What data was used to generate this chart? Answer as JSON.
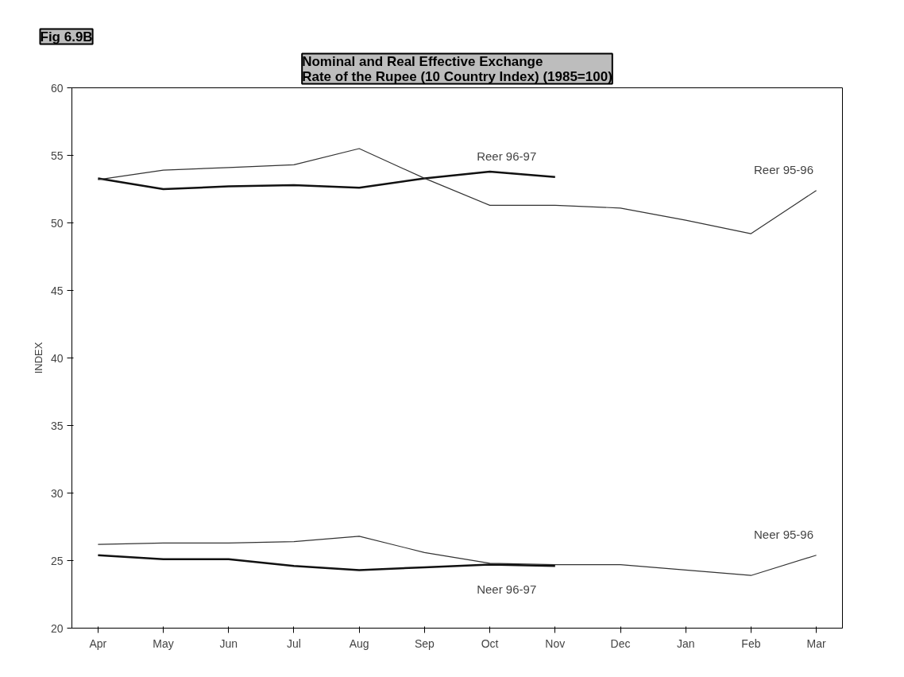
{
  "chart_data": {
    "type": "line",
    "title": "Nominal and Real Effective Exchange\nRate of the Rupee (10 Country Index) (1985=100)",
    "ylabel": "INDEX",
    "annotations": [
      "Fig 6.9B"
    ],
    "categories": [
      "Apr",
      "May",
      "Jun",
      "Jul",
      "Aug",
      "Sep",
      "Oct",
      "Nov",
      "Dec",
      "Jan",
      "Feb",
      "Mar"
    ],
    "series": [
      {
        "name": "Reer 96-97",
        "color": "#111111",
        "values": [
          53.3,
          52.5,
          52.7,
          52.8,
          52.6,
          53.3,
          53.8,
          53.4,
          null,
          null,
          null,
          null
        ]
      },
      {
        "name": "Reer 95-96",
        "color": "#333333",
        "values": [
          53.2,
          53.9,
          54.1,
          54.3,
          55.5,
          53.3,
          51.3,
          51.3,
          51.1,
          50.2,
          49.2,
          52.4
        ]
      },
      {
        "name": "Neer 95-96",
        "color": "#333333",
        "values": [
          26.2,
          26.3,
          26.3,
          26.4,
          26.8,
          25.6,
          24.8,
          24.7,
          24.7,
          24.3,
          23.9,
          25.4
        ]
      },
      {
        "name": "Neer 96-97",
        "color": "#111111",
        "values": [
          25.4,
          25.1,
          25.1,
          24.6,
          24.3,
          24.5,
          24.7,
          24.6,
          null,
          null,
          null,
          null
        ]
      }
    ],
    "ylim": [
      20,
      60
    ],
    "yticks": [
      20,
      25,
      30,
      35,
      40,
      45,
      50,
      55,
      60
    ],
    "grid": false,
    "line_style": "solid"
  }
}
